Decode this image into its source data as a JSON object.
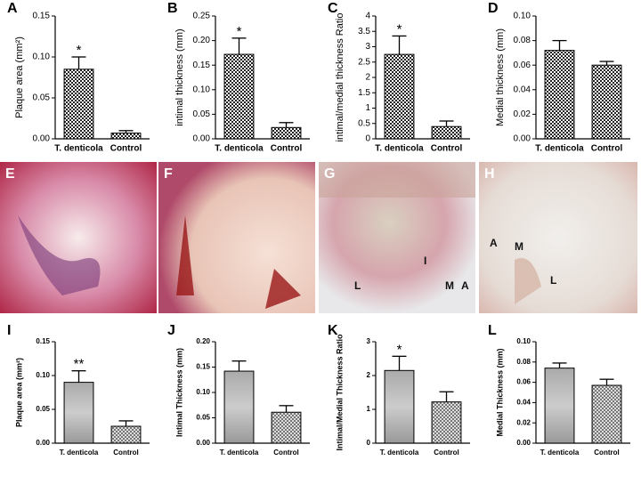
{
  "chart_data": [
    {
      "type": "bar",
      "panel": "A",
      "ylabel": "Plaque area (mm²)",
      "categories": [
        "T. denticola",
        "Control"
      ],
      "values": [
        0.085,
        0.007
      ],
      "errors": [
        0.015,
        0.003
      ],
      "ylim": [
        0,
        0.15
      ],
      "yticks": [
        {
          "value": 0,
          "label": "0.00"
        },
        0.05,
        {
          "value": 0.1,
          "label": "0.10"
        },
        0.15
      ],
      "annotation": "*",
      "annotation_category": "T. denticola"
    },
    {
      "type": "bar",
      "panel": "B",
      "ylabel": "intimal thickness (mm)",
      "categories": [
        "T. denticola",
        "Control"
      ],
      "values": [
        0.172,
        0.023
      ],
      "errors": [
        0.033,
        0.01
      ],
      "ylim": [
        0,
        0.25
      ],
      "yticks": [
        {
          "value": 0,
          "label": "0.00"
        },
        0.05,
        {
          "value": 0.1,
          "label": "0.10"
        },
        0.15,
        {
          "value": 0.2,
          "label": "0.20"
        },
        0.25
      ],
      "annotation": "*",
      "annotation_category": "T. denticola"
    },
    {
      "type": "bar",
      "panel": "C",
      "ylabel": "intimal/medial thickness Ratio",
      "categories": [
        "T. denticola",
        "Control"
      ],
      "values": [
        2.75,
        0.4
      ],
      "errors": [
        0.6,
        0.18
      ],
      "ylim": [
        0,
        4
      ],
      "yticks": [
        0,
        0.5,
        1,
        1.5,
        2,
        2.5,
        3,
        3.5,
        4
      ],
      "annotation": "*",
      "annotation_category": "T. denticola"
    },
    {
      "type": "bar",
      "panel": "D",
      "ylabel": "Medial thickness (mm)",
      "categories": [
        "T. denticola",
        "Control"
      ],
      "values": [
        0.072,
        0.06
      ],
      "errors": [
        0.008,
        0.003
      ],
      "ylim": [
        0,
        0.1
      ],
      "yticks": [
        {
          "value": 0,
          "label": "0.00"
        },
        0.02,
        0.04,
        0.06,
        0.08,
        {
          "value": 0.1,
          "label": "0.10"
        }
      ]
    },
    {
      "type": "bar",
      "panel": "I",
      "ylabel": "Plaque area (mm²)",
      "categories": [
        "T. denticola",
        "Control"
      ],
      "values": [
        0.09,
        0.025
      ],
      "errors": [
        0.017,
        0.008
      ],
      "ylim": [
        0,
        0.15
      ],
      "yticks": [
        {
          "value": 0,
          "label": "0.00"
        },
        0.05,
        {
          "value": 0.1,
          "label": "0.10"
        },
        0.15
      ],
      "annotation": "**",
      "annotation_category": "T. denticola"
    },
    {
      "type": "bar",
      "panel": "J",
      "ylabel": "Intimal Thickness (mm)",
      "categories": [
        "T. denticola",
        "Control"
      ],
      "values": [
        0.142,
        0.061
      ],
      "errors": [
        0.02,
        0.013
      ],
      "ylim": [
        0,
        0.2
      ],
      "yticks": [
        {
          "value": 0,
          "label": "0.00"
        },
        0.05,
        {
          "value": 0.1,
          "label": "0.10"
        },
        0.15,
        {
          "value": 0.2,
          "label": "0.20"
        }
      ]
    },
    {
      "type": "bar",
      "panel": "K",
      "ylabel": "Intimal/Medial Thickness Ratio",
      "categories": [
        "T. denticola",
        "Control"
      ],
      "values": [
        2.15,
        1.22
      ],
      "errors": [
        0.42,
        0.3
      ],
      "ylim": [
        0,
        3
      ],
      "yticks": [
        0,
        1,
        2,
        3
      ],
      "annotation": "*",
      "annotation_category": "T. denticola"
    },
    {
      "type": "bar",
      "panel": "L",
      "ylabel": "Medial Thickness (mm)",
      "categories": [
        "T. denticola",
        "Control"
      ],
      "values": [
        0.074,
        0.057
      ],
      "errors": [
        0.005,
        0.006
      ],
      "ylim": [
        0,
        0.1
      ],
      "yticks": [
        {
          "value": 0,
          "label": "0.00"
        },
        0.02,
        0.04,
        0.06,
        0.08,
        {
          "value": 0.1,
          "label": "0.10"
        }
      ]
    }
  ],
  "images": [
    {
      "panel": "E",
      "labels": []
    },
    {
      "panel": "F",
      "labels": []
    },
    {
      "panel": "G",
      "labels": [
        "L",
        "I",
        "M",
        "A"
      ]
    },
    {
      "panel": "H",
      "labels": [
        "A",
        "M",
        "L"
      ]
    }
  ]
}
